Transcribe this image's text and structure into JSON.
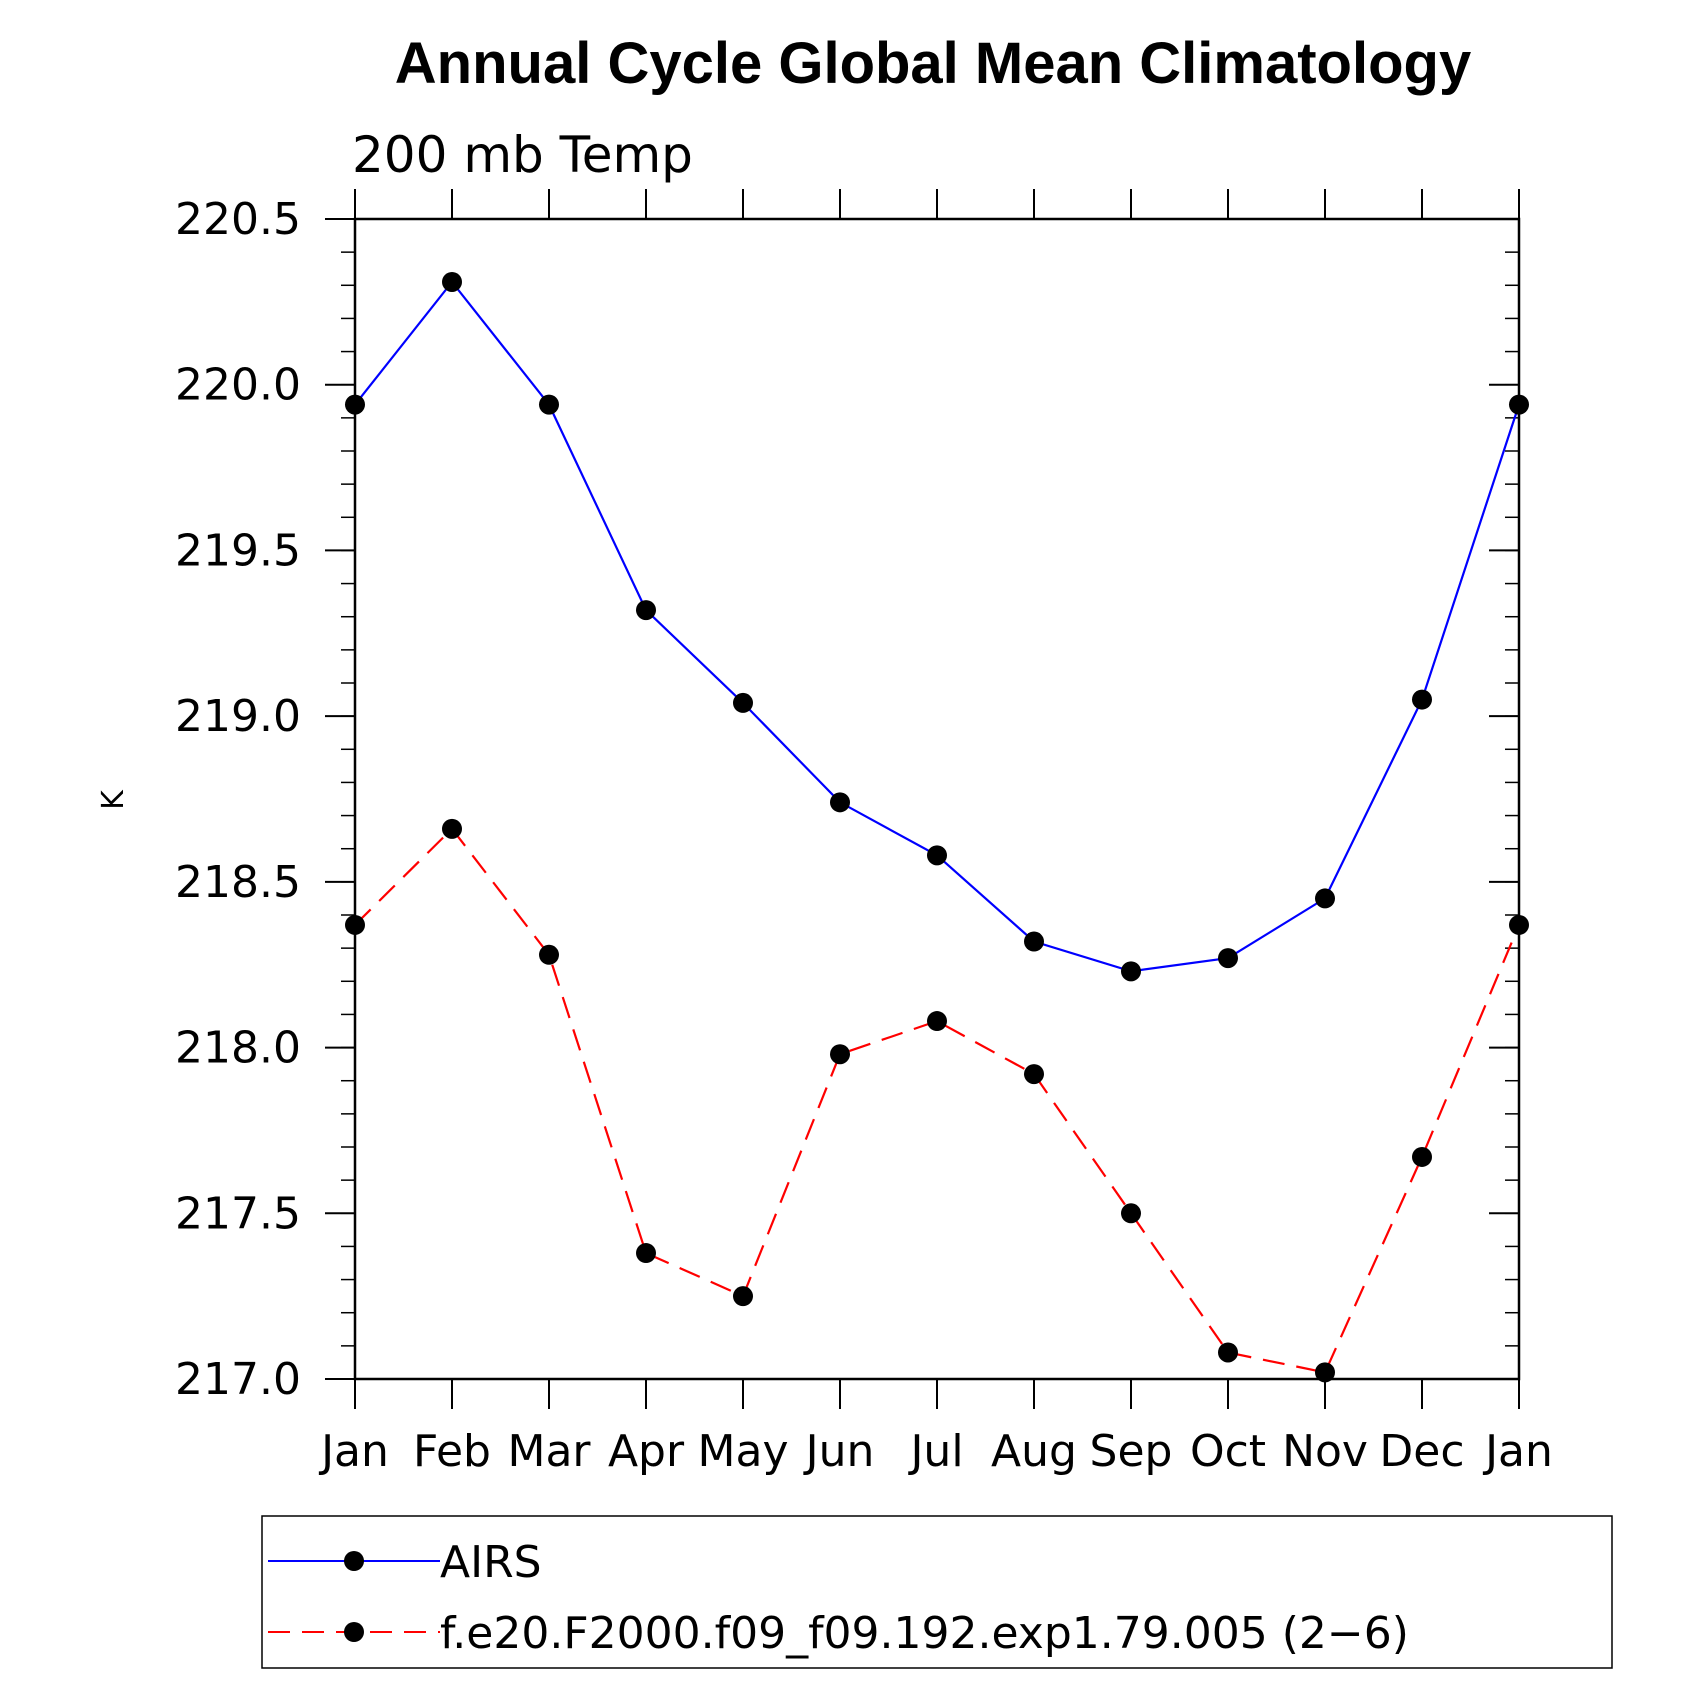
{
  "chart_data": {
    "type": "line",
    "title": "Annual Cycle Global Mean Climatology",
    "subtitle": "200 mb Temp",
    "xlabel": "",
    "ylabel": "K",
    "categories": [
      "Jan",
      "Feb",
      "Mar",
      "Apr",
      "May",
      "Jun",
      "Jul",
      "Aug",
      "Sep",
      "Oct",
      "Nov",
      "Dec",
      "Jan"
    ],
    "ylim": [
      217.0,
      220.5
    ],
    "yticks": [
      217.0,
      217.5,
      218.0,
      218.5,
      219.0,
      219.5,
      220.0,
      220.5
    ],
    "ytick_labels": [
      "217.0",
      "217.5",
      "218.0",
      "218.5",
      "219.0",
      "219.5",
      "220.0",
      "220.5"
    ],
    "y_minor_step": 0.1,
    "grid": false,
    "legend_position": "bottom",
    "series": [
      {
        "name": "AIRS",
        "color": "#0000ff",
        "line_style": "solid",
        "marker": "filled-circle",
        "values": [
          219.94,
          220.31,
          219.94,
          219.32,
          219.04,
          218.74,
          218.58,
          218.32,
          218.23,
          218.27,
          218.45,
          219.05,
          219.94
        ]
      },
      {
        "name": "f.e20.F2000.f09_f09.192.exp1.79.005 (2−6)",
        "color": "#ff0000",
        "line_style": "dashed",
        "marker": "filled-circle",
        "values": [
          218.37,
          218.66,
          218.28,
          217.38,
          217.25,
          217.98,
          218.08,
          217.92,
          217.5,
          217.08,
          217.02,
          217.67,
          218.37
        ]
      }
    ]
  }
}
